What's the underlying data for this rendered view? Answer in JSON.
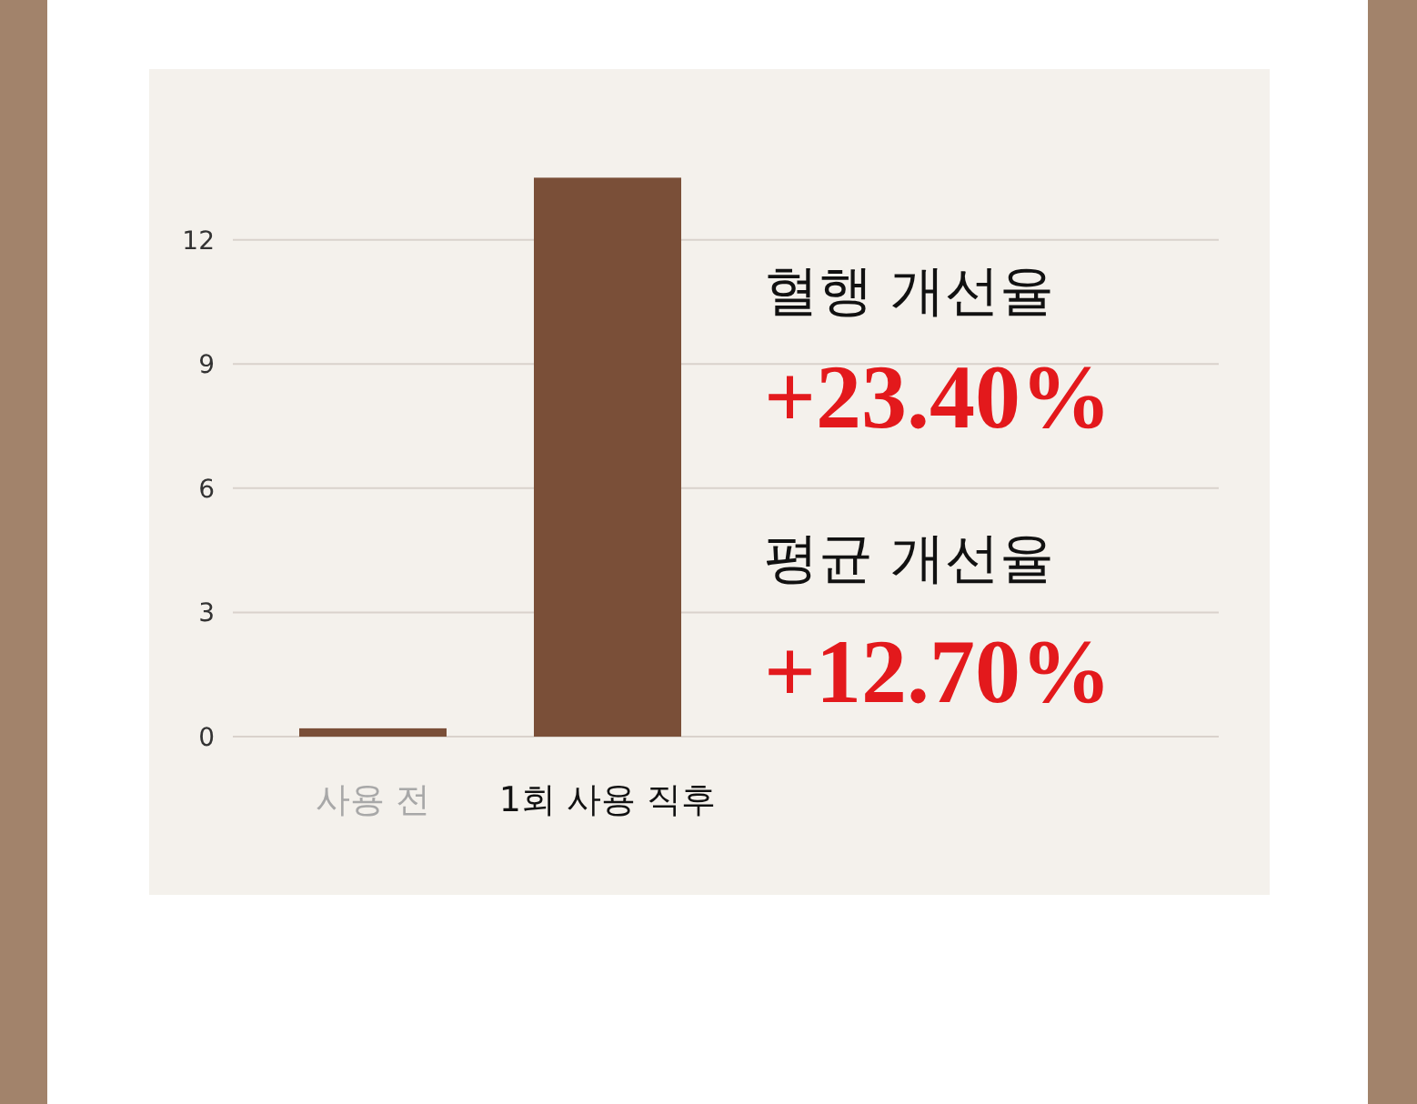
{
  "chart_data": {
    "type": "bar",
    "categories": [
      "사용 전",
      "1회 사용 직후"
    ],
    "values": [
      0.2,
      13.5
    ],
    "color": "#7a4f38",
    "ylim": [
      0,
      13.5
    ],
    "yticks": [
      0,
      3,
      6,
      9,
      12
    ],
    "grid": "y",
    "annotations": [
      "혈행 개선율",
      "+23.40%",
      "평균 개선율",
      "+12.70%"
    ]
  }
}
